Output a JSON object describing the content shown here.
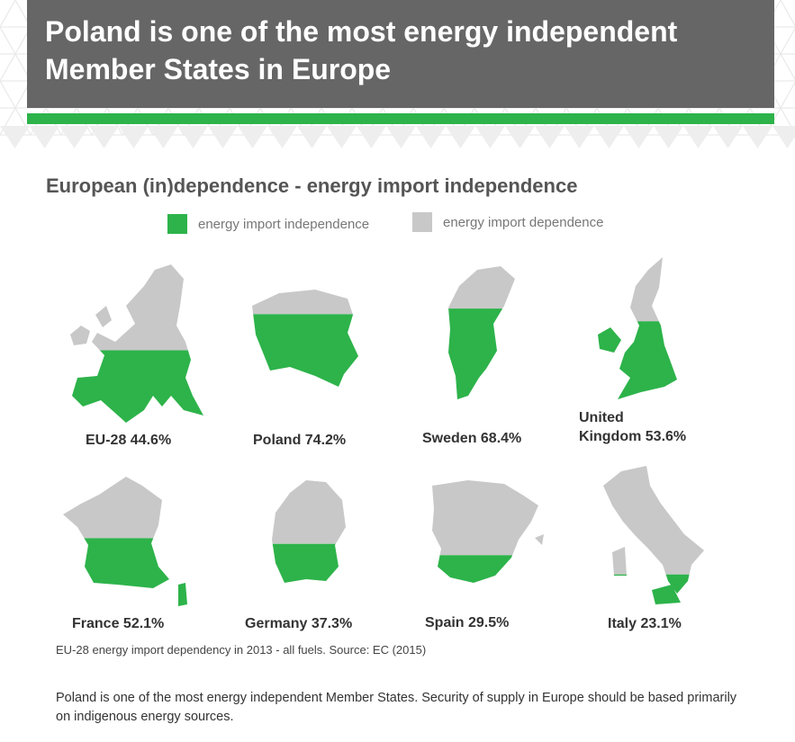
{
  "header": {
    "title": "Poland is one of the most energy independent Member States in Europe"
  },
  "colors": {
    "independence": "#2db34a",
    "dependence": "#c8c8c8",
    "header_bg": "#666666"
  },
  "chart_data": {
    "type": "map",
    "title": "European (in)dependence - energy import independence",
    "legend": [
      {
        "label": "energy import independence",
        "color": "#2db34a"
      },
      {
        "label": "energy import dependence",
        "color": "#c8c8c8"
      }
    ],
    "unit": "%",
    "countries": [
      {
        "name": "EU-28",
        "value": 44.6,
        "label": "EU-28 44.6%"
      },
      {
        "name": "Poland",
        "value": 74.2,
        "label": "Poland 74.2%"
      },
      {
        "name": "Sweden",
        "value": 68.4,
        "label": "Sweden 68.4%"
      },
      {
        "name": "United Kingdom",
        "value": 53.6,
        "label_line1": "United",
        "label_line2": "Kingdom 53.6%"
      },
      {
        "name": "France",
        "value": 52.1,
        "label": "France 52.1%"
      },
      {
        "name": "Germany",
        "value": 37.3,
        "label": "Germany 37.3%"
      },
      {
        "name": "Spain",
        "value": 29.5,
        "label": "Spain 29.5%"
      },
      {
        "name": "Italy",
        "value": 23.1,
        "label": "Italy 23.1%"
      }
    ],
    "source": "EU-28 energy import dependency in 2013 - all fuels. Source: EC (2015)"
  },
  "footer": {
    "note": "Poland is one of the most energy independent Member States. Security of supply in Europe should be based primarily on indigenous energy sources."
  }
}
